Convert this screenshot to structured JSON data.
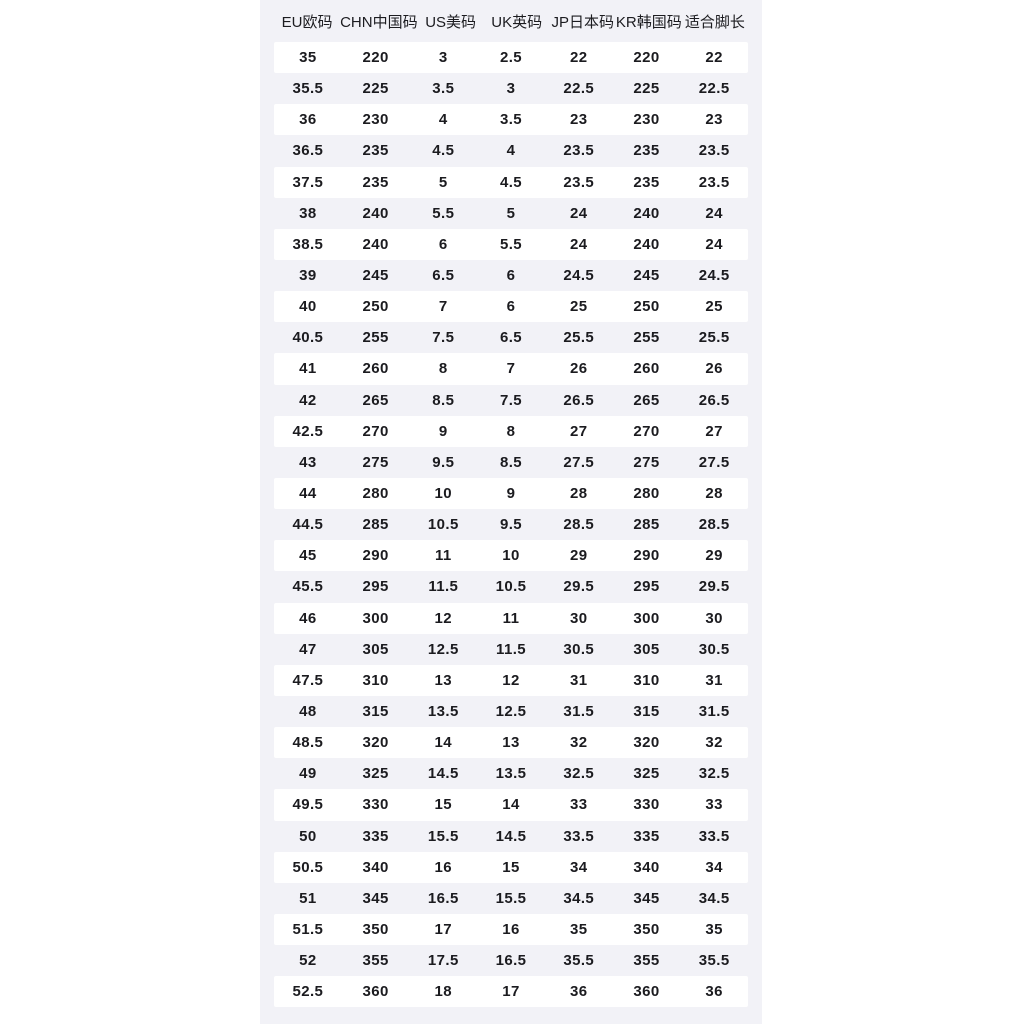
{
  "colors": {
    "page_background": "#ffffff",
    "chart_background": "#f2f2f7",
    "stripe": "#ffffff",
    "text": "#1b1b1f"
  },
  "chart_data": {
    "type": "table",
    "title": "",
    "columns": [
      "EU欧码",
      "CHN中国码",
      "US美码",
      "UK英码",
      "JP日本码",
      "KR韩国码",
      "适合脚长"
    ],
    "rows": [
      [
        "35",
        "220",
        "3",
        "2.5",
        "22",
        "220",
        "22"
      ],
      [
        "35.5",
        "225",
        "3.5",
        "3",
        "22.5",
        "225",
        "22.5"
      ],
      [
        "36",
        "230",
        "4",
        "3.5",
        "23",
        "230",
        "23"
      ],
      [
        "36.5",
        "235",
        "4.5",
        "4",
        "23.5",
        "235",
        "23.5"
      ],
      [
        "37.5",
        "235",
        "5",
        "4.5",
        "23.5",
        "235",
        "23.5"
      ],
      [
        "38",
        "240",
        "5.5",
        "5",
        "24",
        "240",
        "24"
      ],
      [
        "38.5",
        "240",
        "6",
        "5.5",
        "24",
        "240",
        "24"
      ],
      [
        "39",
        "245",
        "6.5",
        "6",
        "24.5",
        "245",
        "24.5"
      ],
      [
        "40",
        "250",
        "7",
        "6",
        "25",
        "250",
        "25"
      ],
      [
        "40.5",
        "255",
        "7.5",
        "6.5",
        "25.5",
        "255",
        "25.5"
      ],
      [
        "41",
        "260",
        "8",
        "7",
        "26",
        "260",
        "26"
      ],
      [
        "42",
        "265",
        "8.5",
        "7.5",
        "26.5",
        "265",
        "26.5"
      ],
      [
        "42.5",
        "270",
        "9",
        "8",
        "27",
        "270",
        "27"
      ],
      [
        "43",
        "275",
        "9.5",
        "8.5",
        "27.5",
        "275",
        "27.5"
      ],
      [
        "44",
        "280",
        "10",
        "9",
        "28",
        "280",
        "28"
      ],
      [
        "44.5",
        "285",
        "10.5",
        "9.5",
        "28.5",
        "285",
        "28.5"
      ],
      [
        "45",
        "290",
        "11",
        "10",
        "29",
        "290",
        "29"
      ],
      [
        "45.5",
        "295",
        "11.5",
        "10.5",
        "29.5",
        "295",
        "29.5"
      ],
      [
        "46",
        "300",
        "12",
        "11",
        "30",
        "300",
        "30"
      ],
      [
        "47",
        "305",
        "12.5",
        "11.5",
        "30.5",
        "305",
        "30.5"
      ],
      [
        "47.5",
        "310",
        "13",
        "12",
        "31",
        "310",
        "31"
      ],
      [
        "48",
        "315",
        "13.5",
        "12.5",
        "31.5",
        "315",
        "31.5"
      ],
      [
        "48.5",
        "320",
        "14",
        "13",
        "32",
        "320",
        "32"
      ],
      [
        "49",
        "325",
        "14.5",
        "13.5",
        "32.5",
        "325",
        "32.5"
      ],
      [
        "49.5",
        "330",
        "15",
        "14",
        "33",
        "330",
        "33"
      ],
      [
        "50",
        "335",
        "15.5",
        "14.5",
        "33.5",
        "335",
        "33.5"
      ],
      [
        "50.5",
        "340",
        "16",
        "15",
        "34",
        "340",
        "34"
      ],
      [
        "51",
        "345",
        "16.5",
        "15.5",
        "34.5",
        "345",
        "34.5"
      ],
      [
        "51.5",
        "350",
        "17",
        "16",
        "35",
        "350",
        "35"
      ],
      [
        "52",
        "355",
        "17.5",
        "16.5",
        "35.5",
        "355",
        "35.5"
      ],
      [
        "52.5",
        "360",
        "18",
        "17",
        "36",
        "360",
        "36"
      ]
    ]
  }
}
